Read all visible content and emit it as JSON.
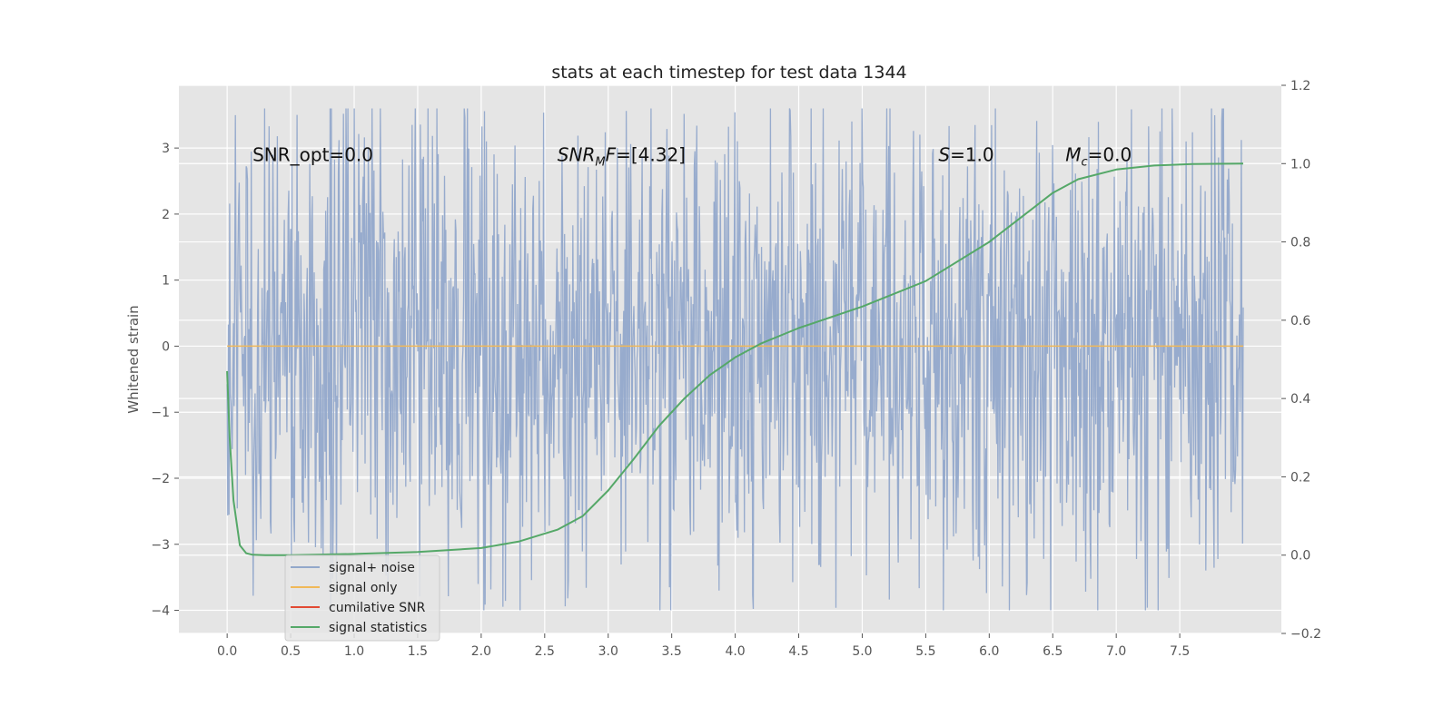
{
  "chart_data": {
    "type": "line",
    "title": "stats at each timestep for test data 1344",
    "xlabel": "",
    "ylabel": "Whitened strain",
    "y2label": "",
    "xlim": [
      -0.38,
      8.3
    ],
    "ylim": [
      -4.35,
      3.95
    ],
    "y2lim": [
      -0.2,
      1.2
    ],
    "x_ticks": [
      0.0,
      0.5,
      1.0,
      1.5,
      2.0,
      2.5,
      3.0,
      3.5,
      4.0,
      4.5,
      5.0,
      5.5,
      6.0,
      6.5,
      7.0,
      7.5
    ],
    "x_tick_labels": [
      "0.0",
      "0.5",
      "1.0",
      "1.5",
      "2.0",
      "2.5",
      "3.0",
      "3.5",
      "4.0",
      "4.5",
      "5.0",
      "5.5",
      "6.0",
      "6.5",
      "7.0",
      "7.5"
    ],
    "y_ticks": [
      -4,
      -3,
      -2,
      -1,
      0,
      1,
      2,
      3
    ],
    "y_tick_labels": [
      "−4",
      "−3",
      "−2",
      "−1",
      "0",
      "1",
      "2",
      "3"
    ],
    "y2_ticks": [
      -0.2,
      0.0,
      0.2,
      0.4,
      0.6,
      0.8,
      1.0,
      1.2
    ],
    "y2_tick_labels": [
      "−0.2",
      "0.0",
      "0.2",
      "0.4",
      "0.6",
      "0.8",
      "1.0",
      "1.2"
    ],
    "grid": true,
    "legend_position": "lower-left",
    "annotations": [
      {
        "text": "SNR_opt=0.0",
        "x": 0.2,
        "y": 2.8
      },
      {
        "text": "SNR_MF=[4.32]",
        "x": 2.6,
        "y": 2.8
      },
      {
        "text": "S=1.0",
        "x": 5.6,
        "y": 2.8
      },
      {
        "text": "M_c=0.0",
        "x": 6.6,
        "y": 2.8
      }
    ],
    "series": [
      {
        "name": "signal+ noise",
        "axis": "left",
        "color": "#92a8cb",
        "x_range": [
          0.0,
          8.0
        ],
        "sample_count": 1600,
        "value_range": [
          -4.0,
          3.6
        ]
      },
      {
        "name": "signal only",
        "axis": "left",
        "color": "#f0b858",
        "x": [
          0.0,
          8.0
        ],
        "values": [
          0.0,
          0.0
        ]
      },
      {
        "name": "cumilative SNR",
        "axis": "right",
        "color": "#e24a33",
        "x": [],
        "values": []
      },
      {
        "name": "signal statistics",
        "axis": "right",
        "color": "#55a868",
        "x": [
          0.0,
          0.02,
          0.05,
          0.1,
          0.15,
          0.2,
          0.3,
          0.5,
          1.0,
          1.5,
          2.0,
          2.3,
          2.6,
          2.8,
          3.0,
          3.2,
          3.4,
          3.6,
          3.8,
          4.0,
          4.2,
          4.5,
          5.0,
          5.5,
          6.0,
          6.3,
          6.5,
          6.7,
          7.0,
          7.3,
          7.6,
          8.0
        ],
        "values": [
          0.47,
          0.3,
          0.14,
          0.025,
          0.005,
          0.001,
          0.0,
          0.0,
          0.003,
          0.008,
          0.018,
          0.035,
          0.065,
          0.1,
          0.165,
          0.245,
          0.33,
          0.4,
          0.46,
          0.505,
          0.54,
          0.58,
          0.635,
          0.7,
          0.8,
          0.875,
          0.925,
          0.96,
          0.985,
          0.995,
          0.999,
          1.0
        ]
      }
    ]
  }
}
